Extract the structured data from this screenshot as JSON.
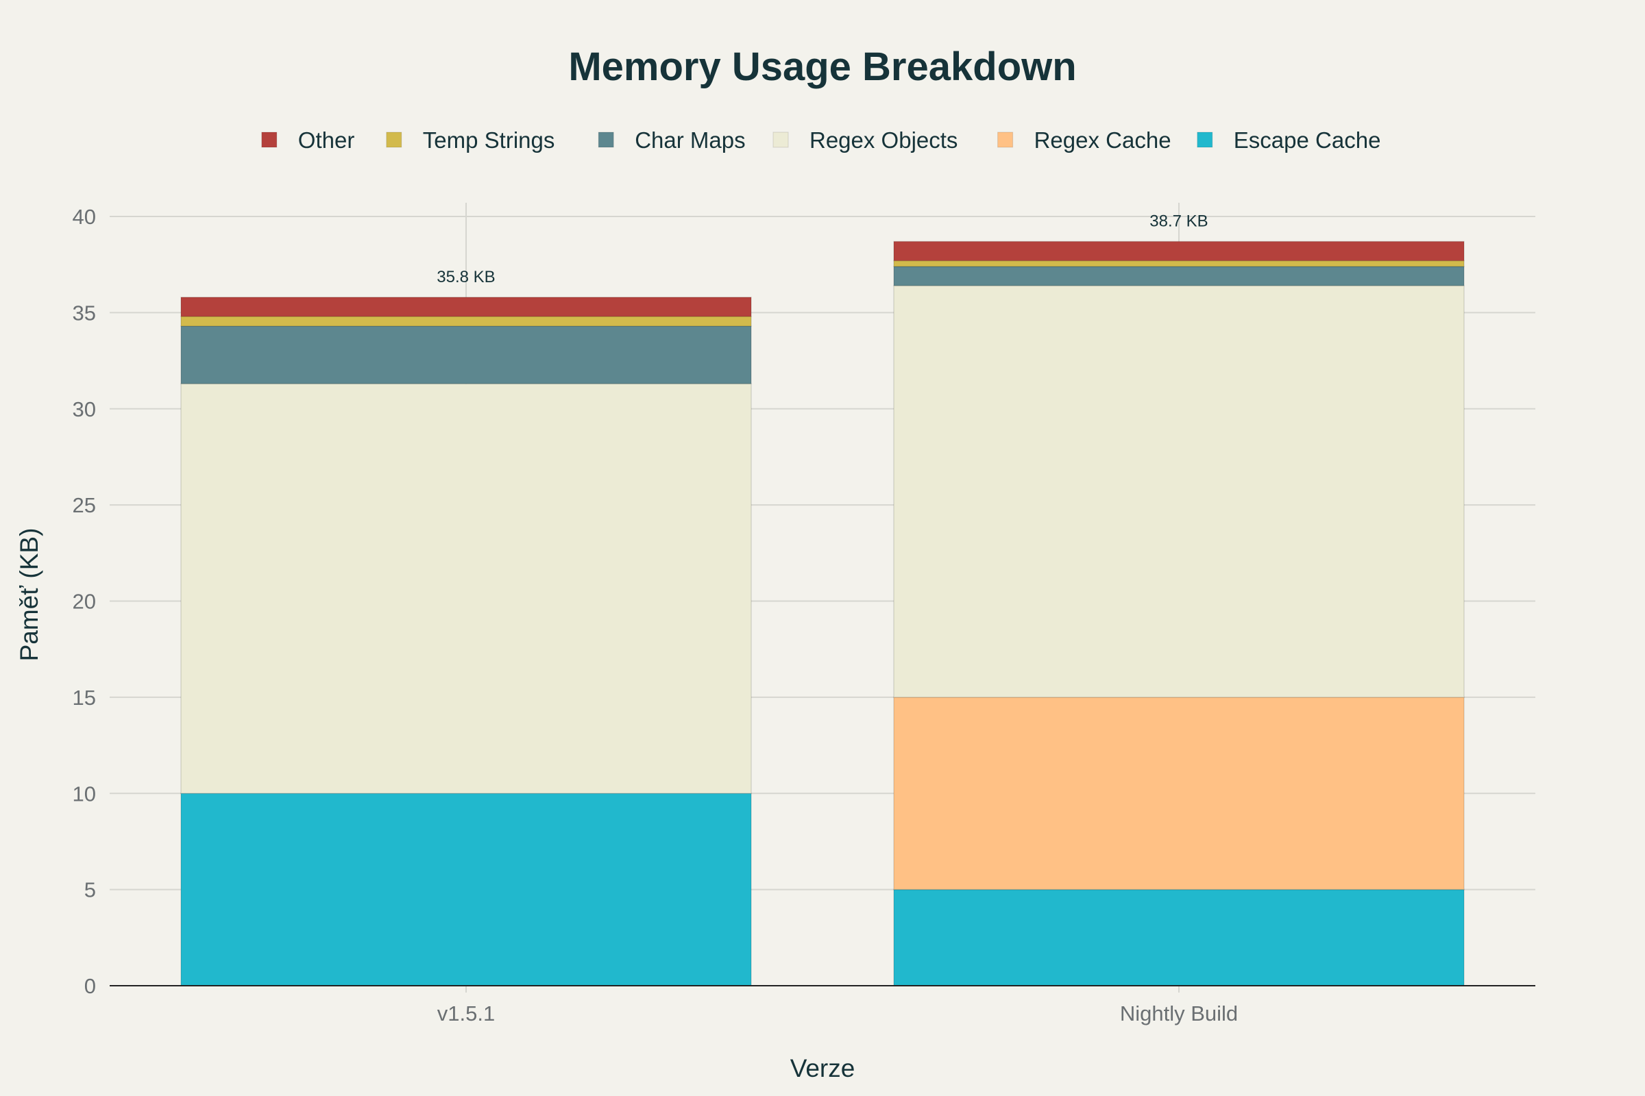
{
  "chart_data": {
    "type": "bar",
    "stacked": true,
    "title": "Memory Usage Breakdown",
    "xlabel": "Verze",
    "ylabel": "Paměť (KB)",
    "ylim": [
      0,
      40
    ],
    "yticks": [
      0,
      5,
      10,
      15,
      20,
      25,
      30,
      35,
      40
    ],
    "grid": true,
    "legend_position": "top",
    "categories": [
      "v1.5.1",
      "Nightly Build"
    ],
    "series": [
      {
        "name": "Escape Cache",
        "color": "#21b8cd",
        "values": [
          10.0,
          5.0
        ]
      },
      {
        "name": "Regex Cache",
        "color": "#ffc185",
        "values": [
          0.0,
          10.0
        ]
      },
      {
        "name": "Regex Objects",
        "color": "#ecebd5",
        "values": [
          21.3,
          21.4
        ]
      },
      {
        "name": "Char Maps",
        "color": "#5d878f",
        "values": [
          3.0,
          1.0
        ]
      },
      {
        "name": "Temp Strings",
        "color": "#d2ba4c",
        "values": [
          0.5,
          0.3
        ]
      },
      {
        "name": "Other",
        "color": "#b4413c",
        "values": [
          1.0,
          1.0
        ]
      }
    ],
    "totals": [
      "35.8 KB",
      "38.7 KB"
    ]
  },
  "legend_order": [
    "Other",
    "Temp Strings",
    "Char Maps",
    "Regex Objects",
    "Regex Cache",
    "Escape Cache"
  ]
}
